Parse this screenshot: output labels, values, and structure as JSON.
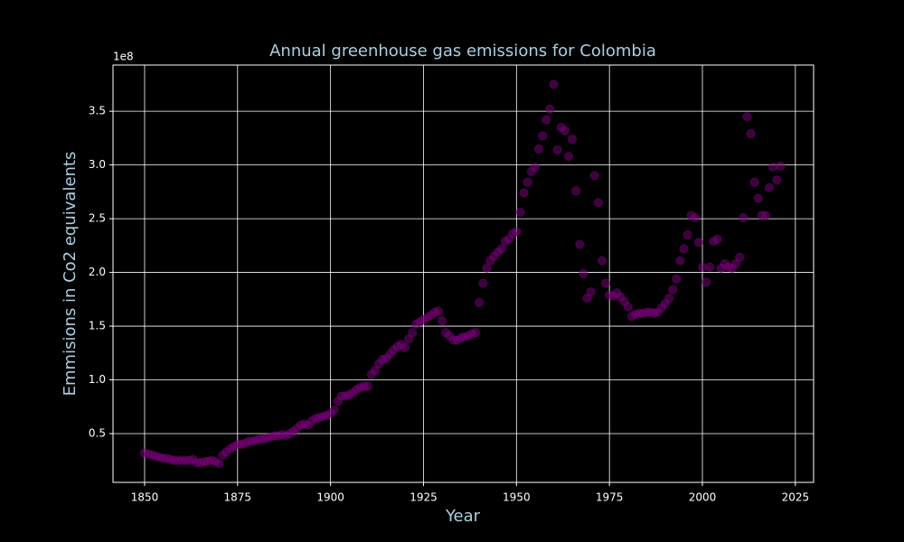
{
  "chart_data": {
    "type": "scatter",
    "title": "Annual greenhouse gas emissions for Colombia",
    "x_label": "Year",
    "y_label": "Emmisions in Co2 equivalents",
    "y_offset_label": "1e8",
    "color": "#800080",
    "grid": true,
    "xlim": [
      1841.5,
      2029.9
    ],
    "ylim": [
      0.046,
      3.93
    ],
    "xticks": [
      1850,
      1875,
      1900,
      1925,
      1950,
      1975,
      2000,
      2025
    ],
    "yticks": [
      0.5,
      {
        "value": 1,
        "label": "1.0"
      },
      1.5,
      {
        "value": 2,
        "label": "2.0"
      },
      2.5,
      {
        "value": 3,
        "label": "3.0"
      },
      3.5
    ],
    "x": [
      1850,
      1851,
      1852,
      1853,
      1854,
      1855,
      1856,
      1857,
      1858,
      1859,
      1860,
      1861,
      1862,
      1863,
      1864,
      1865,
      1866,
      1867,
      1868,
      1869,
      1870,
      1871,
      1872,
      1873,
      1874,
      1875,
      1876,
      1877,
      1878,
      1879,
      1880,
      1881,
      1882,
      1883,
      1884,
      1885,
      1886,
      1887,
      1888,
      1889,
      1890,
      1891,
      1892,
      1893,
      1894,
      1895,
      1896,
      1897,
      1898,
      1899,
      1900,
      1901,
      1902,
      1903,
      1904,
      1905,
      1906,
      1907,
      1908,
      1909,
      1910,
      1911,
      1912,
      1913,
      1914,
      1915,
      1916,
      1917,
      1918,
      1919,
      1920,
      1921,
      1922,
      1923,
      1924,
      1925,
      1926,
      1927,
      1928,
      1929,
      1930,
      1931,
      1932,
      1933,
      1934,
      1935,
      1936,
      1937,
      1938,
      1939,
      1940,
      1941,
      1942,
      1943,
      1944,
      1945,
      1946,
      1947,
      1948,
      1949,
      1950,
      1951,
      1952,
      1953,
      1954,
      1955,
      1956,
      1957,
      1958,
      1959,
      1960,
      1961,
      1962,
      1963,
      1964,
      1965,
      1966,
      1967,
      1968,
      1969,
      1970,
      1971,
      1972,
      1973,
      1974,
      1975,
      1976,
      1977,
      1978,
      1979,
      1980,
      1981,
      1982,
      1983,
      1984,
      1985,
      1986,
      1987,
      1988,
      1989,
      1990,
      1991,
      1992,
      1993,
      1994,
      1995,
      1996,
      1997,
      1998,
      1999,
      2000,
      2001,
      2002,
      2003,
      2004,
      2005,
      2006,
      2007,
      2008,
      2009,
      2010,
      2011,
      2012,
      2013,
      2014,
      2015,
      2016,
      2017,
      2018,
      2019,
      2020,
      2021
    ],
    "values": [
      0.32,
      0.31,
      0.3,
      0.29,
      0.28,
      0.27,
      0.27,
      0.26,
      0.25,
      0.25,
      0.25,
      0.25,
      0.25,
      0.26,
      0.23,
      0.23,
      0.24,
      0.24,
      0.25,
      0.24,
      0.22,
      0.3,
      0.33,
      0.36,
      0.38,
      0.4,
      0.4,
      0.41,
      0.43,
      0.43,
      0.44,
      0.45,
      0.45,
      0.46,
      0.47,
      0.48,
      0.48,
      0.49,
      0.48,
      0.5,
      0.52,
      0.55,
      0.58,
      0.59,
      0.58,
      0.62,
      0.64,
      0.65,
      0.66,
      0.67,
      0.69,
      0.72,
      0.8,
      0.85,
      0.85,
      0.86,
      0.88,
      0.91,
      0.93,
      0.94,
      0.94,
      1.05,
      1.09,
      1.15,
      1.19,
      1.2,
      1.24,
      1.28,
      1.31,
      1.33,
      1.3,
      1.38,
      1.44,
      1.52,
      1.54,
      1.56,
      1.58,
      1.6,
      1.63,
      1.64,
      1.55,
      1.44,
      1.41,
      1.37,
      1.37,
      1.39,
      1.4,
      1.41,
      1.43,
      1.44,
      1.72,
      1.9,
      2.04,
      2.11,
      2.15,
      2.19,
      2.22,
      2.29,
      2.31,
      2.36,
      2.38,
      2.56,
      2.74,
      2.84,
      2.94,
      2.98,
      3.15,
      3.27,
      3.42,
      3.52,
      3.75,
      3.14,
      3.35,
      3.32,
      3.08,
      3.24,
      2.76,
      2.26,
      1.99,
      1.76,
      1.82,
      2.9,
      2.65,
      2.11,
      1.9,
      1.79,
      1.78,
      1.81,
      1.77,
      1.73,
      1.68,
      1.59,
      1.61,
      1.62,
      1.62,
      1.63,
      1.63,
      1.62,
      1.63,
      1.67,
      1.71,
      1.76,
      1.84,
      1.94,
      2.11,
      2.22,
      2.35,
      2.53,
      2.51,
      2.28,
      2.05,
      1.91,
      2.05,
      2.29,
      2.31,
      2.04,
      2.08,
      2.05,
      2.04,
      2.08,
      2.14,
      2.51,
      3.45,
      3.29,
      2.84,
      2.69,
      2.53,
      2.53,
      2.79,
      2.98,
      2.86,
      2.99
    ]
  }
}
